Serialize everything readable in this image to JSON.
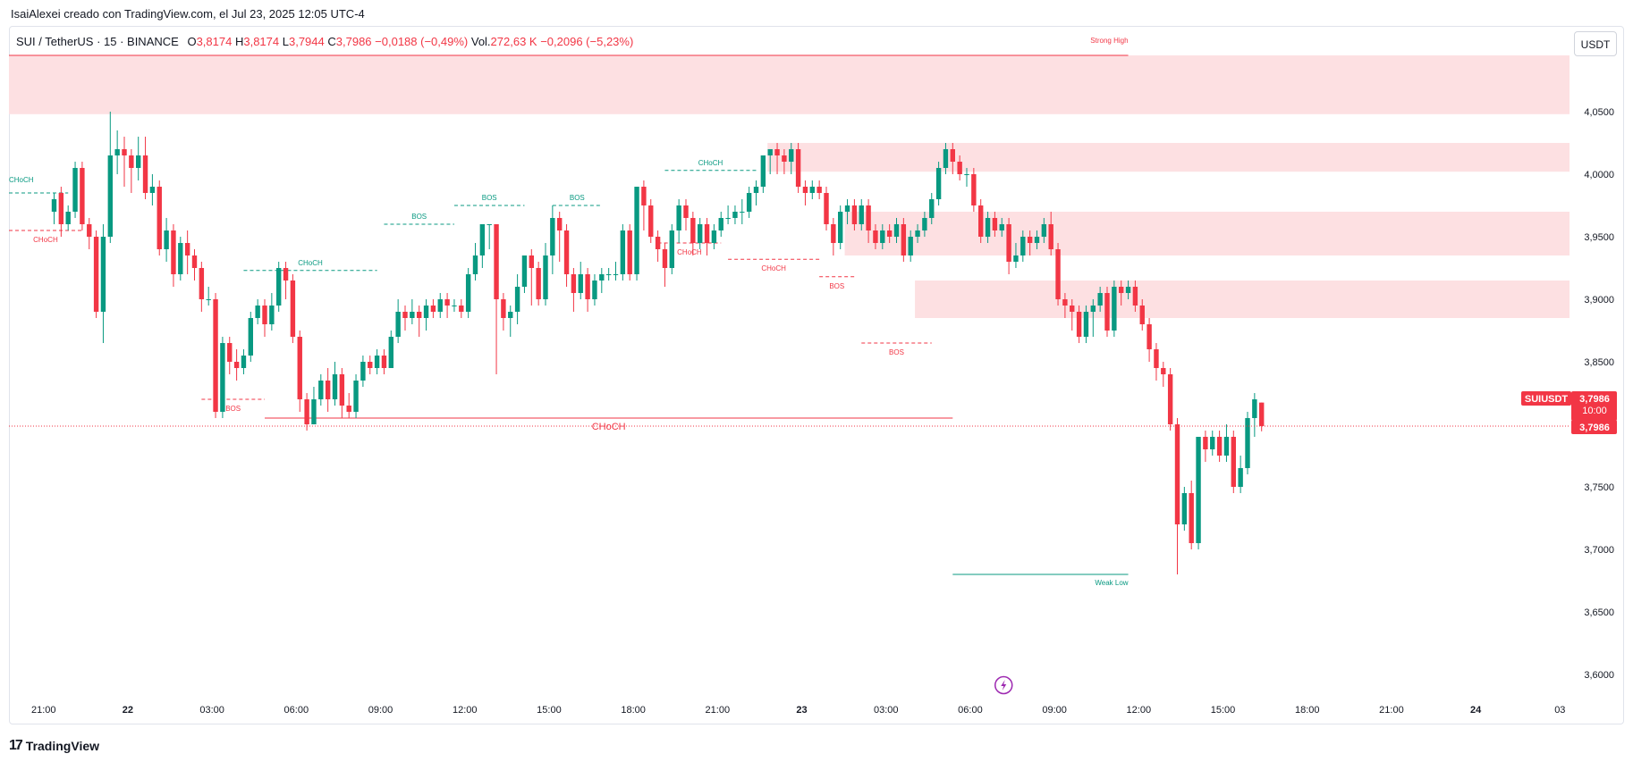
{
  "header": {
    "author_line": "IsaiAlexei creado con TradingView.com, el Jul 23, 2025 12:05 UTC-4"
  },
  "legend": {
    "symbol": "SUI / TetherUS · 15 · BINANCE",
    "o_label": "O",
    "o_value": "3,8174",
    "h_label": "H",
    "h_value": "3,8174",
    "l_label": "L",
    "l_value": "3,7944",
    "c_label": "C",
    "c_value": "3,7986",
    "change": "−0,0188 (−0,49%)",
    "vol_label": "Vol.",
    "vol_value": "272,63 K",
    "vol_change": "−0,2096 (−5,23%)"
  },
  "currency_button": "USDT",
  "footer": {
    "brand": "TradingView",
    "logo": "17"
  },
  "colors": {
    "up": "#089981",
    "down": "#f23645",
    "zone": "#fde0e2",
    "accent": "#9c27b0"
  },
  "chart_data": {
    "type": "candlestick",
    "symbol": "SUIUSDT",
    "y_axis": {
      "ylim": [
        3.575,
        4.1
      ],
      "ticks": [
        "3,6000",
        "3,6500",
        "3,7000",
        "3,7500",
        "3,8000",
        "3,8500",
        "3,9000",
        "3,9500",
        "4,0000",
        "4,0500"
      ],
      "tick_values": [
        3.6,
        3.65,
        3.7,
        3.75,
        3.8,
        3.85,
        3.9,
        3.95,
        4.0,
        4.05
      ]
    },
    "x_axis": {
      "ticks": [
        "21:00",
        "22",
        "03:00",
        "06:00",
        "09:00",
        "12:00",
        "15:00",
        "18:00",
        "21:00",
        "23",
        "03:00",
        "06:00",
        "09:00",
        "12:00",
        "15:00",
        "18:00",
        "21:00",
        "24",
        "03"
      ],
      "bold_ticks": [
        "22",
        "23",
        "24"
      ],
      "bars_per_tick": 12
    },
    "candles": [
      [
        3.97,
        3.98,
        3.96,
        3.985
      ],
      [
        3.985,
        3.96,
        3.95,
        3.99
      ],
      [
        3.96,
        3.97,
        3.955,
        3.975
      ],
      [
        3.97,
        4.005,
        3.965,
        4.01
      ],
      [
        4.005,
        3.96,
        3.955,
        4.01
      ],
      [
        3.96,
        3.95,
        3.94,
        3.965
      ],
      [
        3.95,
        3.89,
        3.885,
        3.955
      ],
      [
        3.89,
        3.95,
        3.865,
        3.96
      ],
      [
        3.95,
        4.015,
        3.945,
        4.05
      ],
      [
        4.015,
        4.02,
        4.0,
        4.035
      ],
      [
        4.02,
        4.015,
        3.99,
        4.03
      ],
      [
        4.015,
        4.005,
        3.985,
        4.02
      ],
      [
        4.005,
        4.015,
        3.995,
        4.03
      ],
      [
        4.015,
        3.985,
        3.98,
        4.03
      ],
      [
        3.985,
        3.99,
        3.975,
        4.0
      ],
      [
        3.99,
        3.94,
        3.935,
        3.995
      ],
      [
        3.94,
        3.955,
        3.93,
        3.965
      ],
      [
        3.955,
        3.92,
        3.91,
        3.96
      ],
      [
        3.92,
        3.945,
        3.915,
        3.95
      ],
      [
        3.945,
        3.935,
        3.92,
        3.955
      ],
      [
        3.935,
        3.925,
        3.915,
        3.94
      ],
      [
        3.925,
        3.9,
        3.89,
        3.93
      ],
      [
        3.9,
        3.9,
        3.895,
        3.91
      ],
      [
        3.9,
        3.81,
        3.805,
        3.905
      ],
      [
        3.81,
        3.865,
        3.805,
        3.87
      ],
      [
        3.865,
        3.85,
        3.84,
        3.87
      ],
      [
        3.85,
        3.845,
        3.835,
        3.86
      ],
      [
        3.845,
        3.855,
        3.84,
        3.86
      ],
      [
        3.855,
        3.885,
        3.85,
        3.89
      ],
      [
        3.885,
        3.895,
        3.88,
        3.9
      ],
      [
        3.895,
        3.88,
        3.87,
        3.9
      ],
      [
        3.88,
        3.895,
        3.875,
        3.905
      ],
      [
        3.895,
        3.925,
        3.89,
        3.93
      ],
      [
        3.925,
        3.915,
        3.9,
        3.93
      ],
      [
        3.915,
        3.87,
        3.865,
        3.92
      ],
      [
        3.87,
        3.82,
        3.81,
        3.875
      ],
      [
        3.82,
        3.8,
        3.795,
        3.825
      ],
      [
        3.8,
        3.82,
        3.8,
        3.83
      ],
      [
        3.82,
        3.835,
        3.815,
        3.84
      ],
      [
        3.835,
        3.82,
        3.81,
        3.845
      ],
      [
        3.82,
        3.84,
        3.815,
        3.85
      ],
      [
        3.84,
        3.815,
        3.805,
        3.845
      ],
      [
        3.815,
        3.81,
        3.805,
        3.825
      ],
      [
        3.81,
        3.835,
        3.805,
        3.84
      ],
      [
        3.835,
        3.85,
        3.83,
        3.855
      ],
      [
        3.85,
        3.845,
        3.84,
        3.855
      ],
      [
        3.845,
        3.855,
        3.84,
        3.86
      ],
      [
        3.855,
        3.845,
        3.84,
        3.86
      ],
      [
        3.845,
        3.87,
        3.845,
        3.875
      ],
      [
        3.87,
        3.89,
        3.865,
        3.9
      ],
      [
        3.89,
        3.885,
        3.875,
        3.895
      ],
      [
        3.885,
        3.89,
        3.88,
        3.9
      ],
      [
        3.89,
        3.885,
        3.87,
        3.895
      ],
      [
        3.885,
        3.895,
        3.875,
        3.9
      ],
      [
        3.895,
        3.89,
        3.885,
        3.9
      ],
      [
        3.89,
        3.9,
        3.885,
        3.905
      ],
      [
        3.9,
        3.895,
        3.885,
        3.905
      ],
      [
        3.895,
        3.895,
        3.89,
        3.9
      ],
      [
        3.895,
        3.89,
        3.885,
        3.9
      ],
      [
        3.89,
        3.92,
        3.885,
        3.925
      ],
      [
        3.92,
        3.935,
        3.915,
        3.945
      ],
      [
        3.935,
        3.96,
        3.925,
        3.96
      ],
      [
        3.96,
        3.96,
        3.94,
        3.96
      ],
      [
        3.96,
        3.9,
        3.84,
        3.96
      ],
      [
        3.9,
        3.885,
        3.875,
        3.905
      ],
      [
        3.885,
        3.89,
        3.87,
        3.895
      ],
      [
        3.89,
        3.91,
        3.88,
        3.92
      ],
      [
        3.91,
        3.935,
        3.905,
        3.935
      ],
      [
        3.935,
        3.925,
        3.895,
        3.94
      ],
      [
        3.925,
        3.9,
        3.895,
        3.93
      ],
      [
        3.9,
        3.935,
        3.895,
        3.945
      ],
      [
        3.935,
        3.965,
        3.92,
        3.975
      ],
      [
        3.965,
        3.955,
        3.93,
        3.97
      ],
      [
        3.955,
        3.92,
        3.91,
        3.96
      ],
      [
        3.92,
        3.905,
        3.89,
        3.925
      ],
      [
        3.905,
        3.92,
        3.9,
        3.93
      ],
      [
        3.92,
        3.9,
        3.89,
        3.925
      ],
      [
        3.9,
        3.915,
        3.895,
        3.92
      ],
      [
        3.915,
        3.92,
        3.905,
        3.925
      ],
      [
        3.92,
        3.92,
        3.915,
        3.925
      ],
      [
        3.92,
        3.92,
        3.915,
        3.93
      ],
      [
        3.92,
        3.955,
        3.915,
        3.96
      ],
      [
        3.955,
        3.92,
        3.915,
        3.96
      ],
      [
        3.92,
        3.99,
        3.915,
        3.99
      ],
      [
        3.99,
        3.975,
        3.955,
        3.995
      ],
      [
        3.975,
        3.95,
        3.945,
        3.98
      ],
      [
        3.95,
        3.94,
        3.93,
        3.955
      ],
      [
        3.94,
        3.925,
        3.91,
        3.945
      ],
      [
        3.925,
        3.955,
        3.92,
        3.96
      ],
      [
        3.955,
        3.975,
        3.945,
        3.98
      ],
      [
        3.975,
        3.965,
        3.955,
        3.98
      ],
      [
        3.965,
        3.945,
        3.935,
        3.97
      ],
      [
        3.945,
        3.96,
        3.94,
        3.965
      ],
      [
        3.96,
        3.945,
        3.935,
        3.965
      ],
      [
        3.945,
        3.955,
        3.94,
        3.96
      ],
      [
        3.955,
        3.965,
        3.95,
        3.97
      ],
      [
        3.965,
        3.965,
        3.96,
        3.975
      ],
      [
        3.965,
        3.97,
        3.96,
        3.975
      ],
      [
        3.97,
        3.97,
        3.96,
        3.98
      ],
      [
        3.97,
        3.985,
        3.965,
        3.99
      ],
      [
        3.985,
        3.99,
        3.975,
        3.995
      ],
      [
        3.99,
        4.015,
        3.985,
        4.015
      ],
      [
        4.015,
        4.02,
        4.0,
        4.02
      ],
      [
        4.02,
        4.015,
        4.0,
        4.025
      ],
      [
        4.015,
        4.01,
        4.0,
        4.02
      ],
      [
        4.01,
        4.02,
        4.0,
        4.025
      ],
      [
        4.02,
        3.99,
        3.985,
        4.025
      ],
      [
        3.99,
        3.985,
        3.975,
        3.995
      ],
      [
        3.985,
        3.99,
        3.98,
        3.995
      ],
      [
        3.99,
        3.985,
        3.98,
        3.995
      ],
      [
        3.985,
        3.96,
        3.955,
        3.99
      ],
      [
        3.96,
        3.945,
        3.935,
        3.965
      ],
      [
        3.945,
        3.97,
        3.94,
        3.975
      ],
      [
        3.97,
        3.975,
        3.96,
        3.98
      ],
      [
        3.975,
        3.96,
        3.955,
        3.98
      ],
      [
        3.96,
        3.975,
        3.955,
        3.98
      ],
      [
        3.975,
        3.955,
        3.945,
        3.98
      ],
      [
        3.955,
        3.945,
        3.94,
        3.96
      ],
      [
        3.945,
        3.955,
        3.94,
        3.96
      ],
      [
        3.955,
        3.95,
        3.945,
        3.96
      ],
      [
        3.95,
        3.96,
        3.945,
        3.965
      ],
      [
        3.96,
        3.935,
        3.93,
        3.965
      ],
      [
        3.935,
        3.95,
        3.93,
        3.955
      ],
      [
        3.95,
        3.955,
        3.945,
        3.96
      ],
      [
        3.955,
        3.965,
        3.95,
        3.97
      ],
      [
        3.965,
        3.98,
        3.96,
        3.985
      ],
      [
        3.98,
        4.005,
        3.975,
        4.01
      ],
      [
        4.005,
        4.02,
        4.0,
        4.025
      ],
      [
        4.02,
        4.01,
        4.0,
        4.025
      ],
      [
        4.01,
        4.0,
        3.995,
        4.015
      ],
      [
        4.0,
        4.0,
        3.99,
        4.005
      ],
      [
        4.0,
        3.975,
        3.97,
        4.005
      ],
      [
        3.975,
        3.95,
        3.945,
        3.98
      ],
      [
        3.95,
        3.965,
        3.945,
        3.97
      ],
      [
        3.965,
        3.955,
        3.95,
        3.97
      ],
      [
        3.955,
        3.96,
        3.95,
        3.965
      ],
      [
        3.96,
        3.93,
        3.92,
        3.965
      ],
      [
        3.93,
        3.935,
        3.925,
        3.945
      ],
      [
        3.935,
        3.95,
        3.93,
        3.955
      ],
      [
        3.95,
        3.945,
        3.935,
        3.955
      ],
      [
        3.945,
        3.95,
        3.94,
        3.955
      ],
      [
        3.95,
        3.96,
        3.945,
        3.965
      ],
      [
        3.96,
        3.94,
        3.935,
        3.97
      ],
      [
        3.94,
        3.9,
        3.895,
        3.945
      ],
      [
        3.9,
        3.895,
        3.885,
        3.905
      ],
      [
        3.895,
        3.89,
        3.875,
        3.9
      ],
      [
        3.89,
        3.87,
        3.865,
        3.895
      ],
      [
        3.87,
        3.89,
        3.865,
        3.895
      ],
      [
        3.89,
        3.895,
        3.87,
        3.9
      ],
      [
        3.895,
        3.905,
        3.89,
        3.91
      ],
      [
        3.905,
        3.875,
        3.87,
        3.91
      ],
      [
        3.875,
        3.91,
        3.87,
        3.915
      ],
      [
        3.91,
        3.905,
        3.895,
        3.915
      ],
      [
        3.905,
        3.91,
        3.9,
        3.915
      ],
      [
        3.91,
        3.895,
        3.89,
        3.915
      ],
      [
        3.895,
        3.88,
        3.875,
        3.9
      ],
      [
        3.88,
        3.86,
        3.85,
        3.885
      ],
      [
        3.86,
        3.845,
        3.835,
        3.865
      ],
      [
        3.845,
        3.84,
        3.83,
        3.85
      ],
      [
        3.84,
        3.8,
        3.795,
        3.845
      ],
      [
        3.8,
        3.72,
        3.68,
        3.805
      ],
      [
        3.72,
        3.745,
        3.715,
        3.75
      ],
      [
        3.745,
        3.705,
        3.7,
        3.755
      ],
      [
        3.705,
        3.79,
        3.7,
        3.79
      ],
      [
        3.79,
        3.78,
        3.77,
        3.795
      ],
      [
        3.78,
        3.79,
        3.775,
        3.795
      ],
      [
        3.79,
        3.775,
        3.77,
        3.795
      ],
      [
        3.775,
        3.79,
        3.77,
        3.8
      ],
      [
        3.79,
        3.75,
        3.745,
        3.795
      ],
      [
        3.75,
        3.765,
        3.745,
        3.775
      ],
      [
        3.765,
        3.805,
        3.76,
        3.81
      ],
      [
        3.805,
        3.82,
        3.79,
        3.825
      ],
      [
        3.8174,
        3.7986,
        3.7944,
        3.8174
      ]
    ],
    "candle_format": "[open, close, low, high]",
    "zones": [
      {
        "x_from_bar": 0,
        "x_to": "end",
        "y_low": 4.048,
        "y_high": 4.095
      },
      {
        "x_from_bar": 102,
        "x_to": "end",
        "y_low": 4.002,
        "y_high": 4.025
      },
      {
        "x_from_bar": 113,
        "x_to": "end",
        "y_low": 3.935,
        "y_high": 3.97
      },
      {
        "x_from_bar": 123,
        "x_to": "end",
        "y_low": 3.885,
        "y_high": 3.915
      }
    ],
    "levels": [
      {
        "label": "Strong High",
        "y": 4.095,
        "from_bar": 0,
        "to_bar": 153,
        "color": "#f23645",
        "style": "solid",
        "label_pos": "right"
      },
      {
        "label": "Weak Low",
        "y": 3.68,
        "from_bar": 128,
        "to_bar": 153,
        "color": "#089981",
        "style": "solid",
        "label_pos": "right"
      },
      {
        "label": "CHoCH",
        "y": 3.805,
        "from_bar": 30,
        "to_bar": 128,
        "color": "#f23645",
        "style": "solid",
        "label_pos": "mid-below"
      },
      {
        "label": "CHoCH",
        "y": 3.985,
        "from_bar": 0,
        "to_bar": 2,
        "color": "#089981",
        "style": "dashed",
        "label_pos": "left-above"
      },
      {
        "label": "CHoCH",
        "y": 3.955,
        "from_bar": 0,
        "to_bar": 4,
        "color": "#f23645",
        "style": "dashed",
        "label_pos": "mid-below"
      },
      {
        "label": "BOS",
        "y": 3.82,
        "from_bar": 21,
        "to_bar": 30,
        "color": "#f23645",
        "style": "dashed",
        "label_pos": "mid-below"
      },
      {
        "label": "CHoCH",
        "y": 3.923,
        "from_bar": 27,
        "to_bar": 46,
        "color": "#089981",
        "style": "dashed",
        "label_pos": "mid-above"
      },
      {
        "label": "BOS",
        "y": 3.96,
        "from_bar": 47,
        "to_bar": 57,
        "color": "#089981",
        "style": "dashed",
        "label_pos": "mid-above"
      },
      {
        "label": "BOS",
        "y": 3.975,
        "from_bar": 57,
        "to_bar": 67,
        "color": "#089981",
        "style": "dashed",
        "label_pos": "mid-above"
      },
      {
        "label": "BOS",
        "y": 3.975,
        "from_bar": 71,
        "to_bar": 78,
        "color": "#089981",
        "style": "dashed",
        "label_pos": "mid-above"
      },
      {
        "label": "CHoCH",
        "y": 4.003,
        "from_bar": 87,
        "to_bar": 100,
        "color": "#089981",
        "style": "dashed",
        "label_pos": "mid-above"
      },
      {
        "label": "CHoCH",
        "y": 3.945,
        "from_bar": 86,
        "to_bar": 95,
        "color": "#f23645",
        "style": "dashed",
        "label_pos": "mid-below"
      },
      {
        "label": "CHoCH",
        "y": 3.932,
        "from_bar": 96,
        "to_bar": 109,
        "color": "#f23645",
        "style": "dashed",
        "label_pos": "mid-below"
      },
      {
        "label": "BOS",
        "y": 3.918,
        "from_bar": 109,
        "to_bar": 114,
        "color": "#f23645",
        "style": "dashed",
        "label_pos": "mid-below"
      },
      {
        "label": "BOS",
        "y": 3.865,
        "from_bar": 115,
        "to_bar": 125,
        "color": "#f23645",
        "style": "dashed",
        "label_pos": "mid-below"
      }
    ],
    "last_price": {
      "value": 3.7986,
      "symbol_tag": "SUIUSDT",
      "price_text": "3,7986",
      "countdown": "10:00",
      "color": "#f23645"
    },
    "marker": {
      "icon": "lightning-icon",
      "bar": 135
    }
  }
}
